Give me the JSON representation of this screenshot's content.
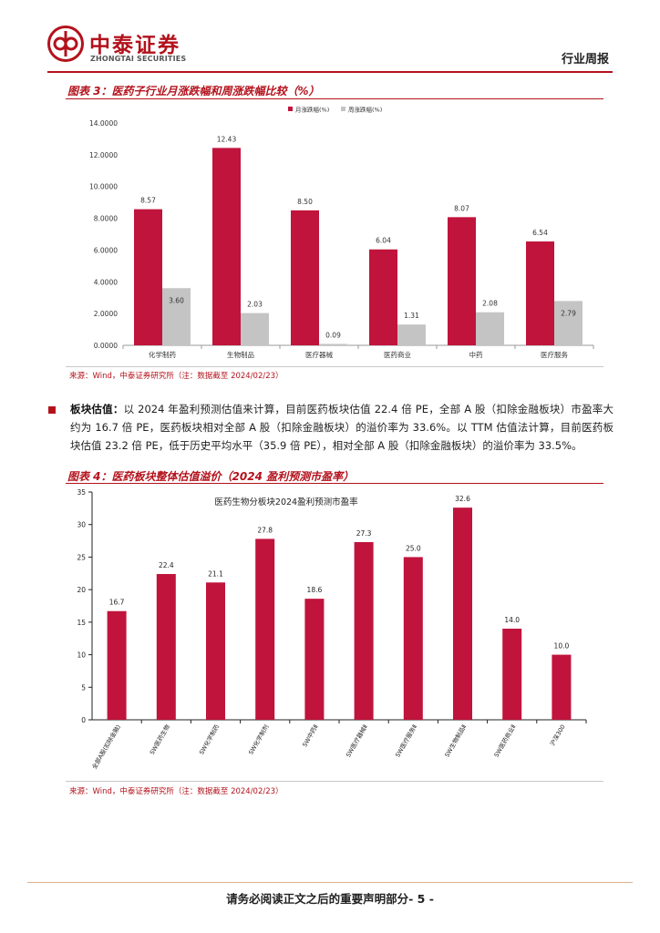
{
  "header": {
    "company_cn": "中泰证券",
    "company_en": "ZHONGTAI SECURITIES",
    "report_type": "行业周报",
    "brand_color": "#b3121c"
  },
  "figure3": {
    "title": "图表 3：医药子行业月涨跌幅和周涨跌幅比较（%）",
    "source": "来源：Wind，中泰证券研究所（注：数据截至 2024/02/23）"
  },
  "figure4": {
    "title": "图表 4：医药板块整体估值溢价（2024 盈利预测市盈率）",
    "source": "来源：Wind，中泰证券研究所（注：数据截至 2024/02/23）"
  },
  "paragraph": {
    "lead": "板块估值：",
    "text": "以 2024 年盈利预测估值来计算，目前医药板块估值 22.4 倍 PE，全部 A 股（扣除金融板块）市盈率大约为 16.7 倍 PE，医药板块相对全部 A 股（扣除金融板块）的溢价率为 33.6%。以 TTM 估值法计算，目前医药板块估值 23.2 倍 PE，低于历史平均水平（35.9 倍 PE），相对全部 A 股（扣除金融板块）的溢价率为 33.5%。"
  },
  "footer": {
    "text": "请务必阅读正文之后的重要声明部分- 5 -"
  },
  "chart_data": [
    {
      "type": "bar",
      "categories": [
        "化学制药",
        "生物制品",
        "医疗器械",
        "医药商业",
        "中药",
        "医疗服务"
      ],
      "series": [
        {
          "name": "月涨跌幅(%)",
          "color": "#c0143c",
          "values": [
            8.57,
            12.43,
            8.5,
            6.04,
            8.07,
            6.54
          ],
          "labels": [
            "8.57",
            "12.43",
            "8.50",
            "6.04",
            "8.07",
            "6.54"
          ]
        },
        {
          "name": "周涨跌幅(%)",
          "color": "#c4c4c4",
          "values": [
            3.6,
            2.03,
            0.09,
            1.31,
            2.08,
            2.79
          ],
          "labels": [
            "3.60",
            "2.03",
            "0.09",
            "1.31",
            "2.08",
            "2.79"
          ]
        }
      ],
      "yticks": [
        "0.0000",
        "2.0000",
        "4.0000",
        "6.0000",
        "8.0000",
        "10.0000",
        "12.0000",
        "14.0000"
      ],
      "ylim": [
        0,
        14
      ],
      "title": "",
      "xlabel": "",
      "ylabel": "",
      "legend": "top-center"
    },
    {
      "type": "bar",
      "title": "医药生物分板块2024盈利预测市盈率",
      "categories": [
        "全部A股(扣除金融)",
        "SW医药生物",
        "SW化学制药",
        "SW化学制剂",
        "SW中药Ⅱ",
        "SW医疗器械Ⅱ",
        "SW医疗服务Ⅱ",
        "SW生物制品Ⅱ",
        "SW医药商业Ⅱ",
        "沪深300"
      ],
      "values": [
        16.7,
        22.4,
        21.1,
        27.8,
        18.6,
        27.3,
        25.0,
        32.6,
        14.0,
        10.0
      ],
      "labels": [
        "16.7",
        "22.4",
        "21.1",
        "27.8",
        "18.6",
        "27.3",
        "25.0",
        "32.6",
        "14.0",
        "10.0"
      ],
      "color": "#c0143c",
      "yticks": [
        "0",
        "5",
        "10",
        "15",
        "20",
        "25",
        "30",
        "35"
      ],
      "ylim": [
        0,
        35
      ],
      "xlabel": "",
      "ylabel": ""
    }
  ]
}
